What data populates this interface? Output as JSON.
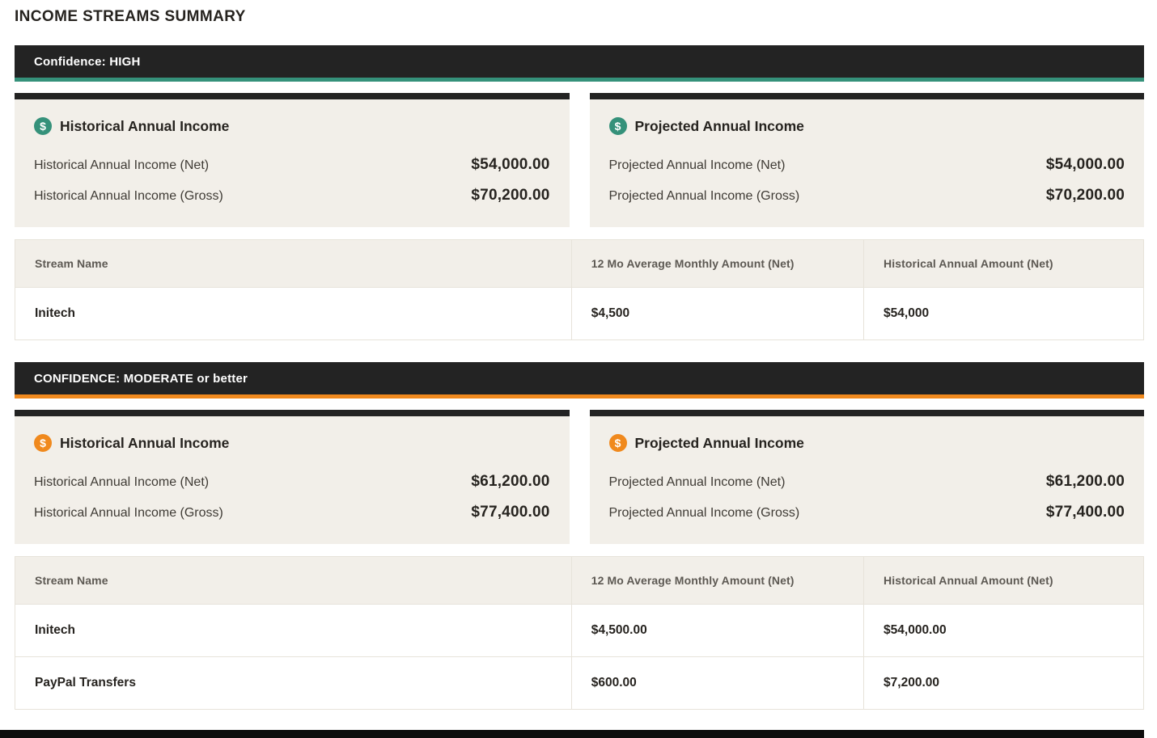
{
  "page": {
    "title": "INCOME STREAMS SUMMARY"
  },
  "icons": {
    "dollar": "$"
  },
  "colors": {
    "banner_bg": "#232323",
    "accent_high": "#35917a",
    "accent_moderate": "#f0891d",
    "card_bg": "#f2efe9",
    "table_border": "#e7e3da"
  },
  "sections": {
    "high": {
      "banner": "Confidence: HIGH",
      "cards": [
        {
          "title": "Historical Annual Income",
          "rows": [
            {
              "label": "Historical Annual Income (Net)",
              "value": "$54,000.00"
            },
            {
              "label": "Historical Annual Income (Gross)",
              "value": "$70,200.00"
            }
          ]
        },
        {
          "title": "Projected Annual Income",
          "rows": [
            {
              "label": "Projected Annual Income (Net)",
              "value": "$54,000.00"
            },
            {
              "label": "Projected Annual Income (Gross)",
              "value": "$70,200.00"
            }
          ]
        }
      ],
      "table": {
        "headers": [
          "Stream Name",
          "12 Mo Average Monthly Amount (Net)",
          "Historical Annual Amount (Net)"
        ],
        "rows": [
          [
            "Initech",
            "$4,500",
            "$54,000"
          ]
        ]
      }
    },
    "moderate": {
      "banner": "CONFIDENCE: MODERATE or better",
      "cards": [
        {
          "title": "Historical Annual Income",
          "rows": [
            {
              "label": "Historical Annual Income (Net)",
              "value": "$61,200.00"
            },
            {
              "label": "Historical Annual Income (Gross)",
              "value": "$77,400.00"
            }
          ]
        },
        {
          "title": "Projected Annual Income",
          "rows": [
            {
              "label": "Projected Annual Income (Net)",
              "value": "$61,200.00"
            },
            {
              "label": "Projected Annual Income (Gross)",
              "value": "$77,400.00"
            }
          ]
        }
      ],
      "table": {
        "headers": [
          "Stream Name",
          "12 Mo Average Monthly Amount (Net)",
          "Historical Annual Amount (Net)"
        ],
        "rows": [
          [
            "Initech",
            "$4,500.00",
            "$54,000.00"
          ],
          [
            "PayPal Transfers",
            "$600.00",
            "$7,200.00"
          ]
        ]
      }
    }
  }
}
